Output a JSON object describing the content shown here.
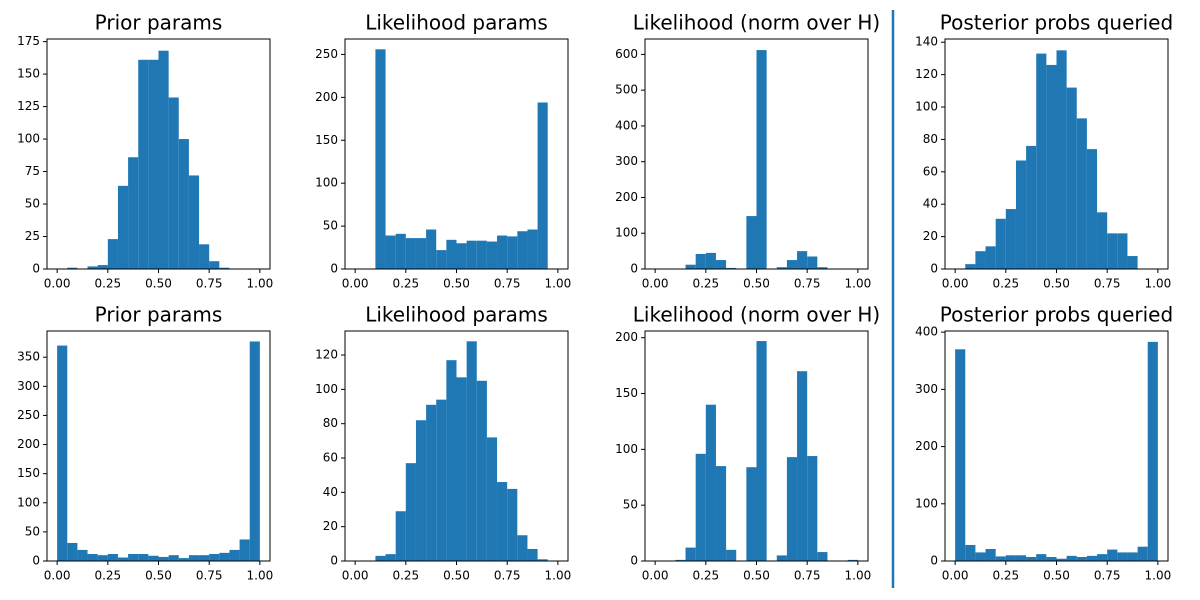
{
  "chart_data": [
    {
      "type": "histogram",
      "title": "Prior params",
      "color": "#1f77b4",
      "bins": [
        0,
        0.05,
        0.1,
        0.15,
        0.2,
        0.25,
        0.3,
        0.35,
        0.4,
        0.45,
        0.5,
        0.55,
        0.6,
        0.65,
        0.7,
        0.75,
        0.8,
        0.85,
        0.9,
        0.95,
        1
      ],
      "counts": [
        0,
        1,
        0,
        2,
        3,
        23,
        64,
        86,
        161,
        161,
        168,
        132,
        100,
        72,
        19,
        6,
        1,
        0,
        0,
        0
      ],
      "xlim": [
        -0.05,
        1.05
      ],
      "xticks": [
        {
          "value": 0,
          "label": "0.00"
        },
        {
          "value": 0.25,
          "label": "0.25"
        },
        {
          "value": 0.5,
          "label": "0.50"
        },
        {
          "value": 0.75,
          "label": "0.75"
        },
        {
          "value": 1,
          "label": "1.00"
        }
      ],
      "ylim": [
        0,
        177
      ],
      "yticks": [
        0,
        25,
        50,
        75,
        100,
        125,
        150,
        175
      ]
    },
    {
      "type": "histogram",
      "title": "Likelihood params",
      "color": "#1f77b4",
      "bins": [
        0,
        0.05,
        0.1,
        0.15,
        0.2,
        0.25,
        0.3,
        0.35,
        0.4,
        0.45,
        0.5,
        0.55,
        0.6,
        0.65,
        0.7,
        0.75,
        0.8,
        0.85,
        0.9,
        0.95,
        1
      ],
      "counts": [
        0,
        0,
        256,
        39,
        41,
        36,
        36,
        46,
        22,
        34,
        30,
        33,
        33,
        32,
        39,
        38,
        44,
        46,
        194,
        0
      ],
      "xlim": [
        -0.05,
        1.05
      ],
      "xticks": [
        {
          "value": 0,
          "label": "0.00"
        },
        {
          "value": 0.25,
          "label": "0.25"
        },
        {
          "value": 0.5,
          "label": "0.50"
        },
        {
          "value": 0.75,
          "label": "0.75"
        },
        {
          "value": 1,
          "label": "1.00"
        }
      ],
      "ylim": [
        0,
        268
      ],
      "yticks": [
        0,
        50,
        100,
        150,
        200,
        250
      ]
    },
    {
      "type": "histogram",
      "title": "Likelihood (norm over H)",
      "color": "#1f77b4",
      "bins": [
        0,
        0.05,
        0.1,
        0.15,
        0.2,
        0.25,
        0.3,
        0.35,
        0.4,
        0.45,
        0.5,
        0.55,
        0.6,
        0.65,
        0.7,
        0.75,
        0.8,
        0.85,
        0.9,
        0.95,
        1
      ],
      "counts": [
        0,
        0,
        0,
        12,
        42,
        45,
        25,
        3,
        0,
        148,
        612,
        0,
        5,
        25,
        50,
        35,
        5,
        0,
        0,
        0
      ],
      "xlim": [
        -0.05,
        1.05
      ],
      "xticks": [
        {
          "value": 0,
          "label": "0.00"
        },
        {
          "value": 0.25,
          "label": "0.25"
        },
        {
          "value": 0.5,
          "label": "0.50"
        },
        {
          "value": 0.75,
          "label": "0.75"
        },
        {
          "value": 1,
          "label": "1.00"
        }
      ],
      "ylim": [
        0,
        643
      ],
      "yticks": [
        0,
        100,
        200,
        300,
        400,
        500,
        600
      ]
    },
    {
      "type": "histogram",
      "title": "Posterior probs queried",
      "color": "#1f77b4",
      "bins": [
        0,
        0.05,
        0.1,
        0.15,
        0.2,
        0.25,
        0.3,
        0.35,
        0.4,
        0.45,
        0.5,
        0.55,
        0.6,
        0.65,
        0.7,
        0.75,
        0.8,
        0.85,
        0.9,
        0.95,
        1
      ],
      "counts": [
        0,
        3,
        11,
        14,
        31,
        37,
        67,
        76,
        133,
        126,
        135,
        112,
        93,
        74,
        35,
        22,
        22,
        8,
        0,
        0
      ],
      "xlim": [
        -0.05,
        1.05
      ],
      "xticks": [
        {
          "value": 0,
          "label": "0.00"
        },
        {
          "value": 0.25,
          "label": "0.25"
        },
        {
          "value": 0.5,
          "label": "0.50"
        },
        {
          "value": 0.75,
          "label": "0.75"
        },
        {
          "value": 1,
          "label": "1.00"
        }
      ],
      "ylim": [
        0,
        142
      ],
      "yticks": [
        0,
        20,
        40,
        60,
        80,
        100,
        120,
        140
      ]
    },
    {
      "type": "histogram",
      "title": "Prior params",
      "color": "#1f77b4",
      "bins": [
        0,
        0.05,
        0.1,
        0.15,
        0.2,
        0.25,
        0.3,
        0.35,
        0.4,
        0.45,
        0.5,
        0.55,
        0.6,
        0.65,
        0.7,
        0.75,
        0.8,
        0.85,
        0.9,
        0.95,
        1
      ],
      "counts": [
        370,
        31,
        19,
        12,
        10,
        12,
        6,
        12,
        12,
        9,
        7,
        10,
        5,
        10,
        10,
        12,
        14,
        19,
        37,
        377
      ],
      "xlim": [
        -0.05,
        1.05
      ],
      "xticks": [
        {
          "value": 0,
          "label": "0.00"
        },
        {
          "value": 0.25,
          "label": "0.25"
        },
        {
          "value": 0.5,
          "label": "0.50"
        },
        {
          "value": 0.75,
          "label": "0.75"
        },
        {
          "value": 1,
          "label": "1.00"
        }
      ],
      "ylim": [
        0,
        395
      ],
      "yticks": [
        0,
        50,
        100,
        150,
        200,
        250,
        300,
        350
      ]
    },
    {
      "type": "histogram",
      "title": "Likelihood params",
      "color": "#1f77b4",
      "bins": [
        0,
        0.05,
        0.1,
        0.15,
        0.2,
        0.25,
        0.3,
        0.35,
        0.4,
        0.45,
        0.5,
        0.55,
        0.6,
        0.65,
        0.7,
        0.75,
        0.8,
        0.85,
        0.9,
        0.95,
        1
      ],
      "counts": [
        0,
        0,
        3,
        4,
        29,
        57,
        82,
        91,
        94,
        117,
        107,
        128,
        105,
        72,
        46,
        42,
        15,
        7,
        1,
        0
      ],
      "xlim": [
        -0.05,
        1.05
      ],
      "xticks": [
        {
          "value": 0,
          "label": "0.00"
        },
        {
          "value": 0.25,
          "label": "0.25"
        },
        {
          "value": 0.5,
          "label": "0.50"
        },
        {
          "value": 0.75,
          "label": "0.75"
        },
        {
          "value": 1,
          "label": "1.00"
        }
      ],
      "ylim": [
        0,
        134
      ],
      "yticks": [
        0,
        20,
        40,
        60,
        80,
        100,
        120
      ]
    },
    {
      "type": "histogram",
      "title": "Likelihood (norm over H)",
      "color": "#1f77b4",
      "bins": [
        0,
        0.05,
        0.1,
        0.15,
        0.2,
        0.25,
        0.3,
        0.35,
        0.4,
        0.45,
        0.5,
        0.55,
        0.6,
        0.65,
        0.7,
        0.75,
        0.8,
        0.85,
        0.9,
        0.95,
        1
      ],
      "counts": [
        0,
        0,
        1,
        12,
        96,
        140,
        85,
        10,
        0,
        84,
        197,
        0,
        5,
        93,
        170,
        94,
        8,
        0,
        0,
        1
      ],
      "xlim": [
        -0.05,
        1.05
      ],
      "xticks": [
        {
          "value": 0,
          "label": "0.00"
        },
        {
          "value": 0.25,
          "label": "0.25"
        },
        {
          "value": 0.5,
          "label": "0.50"
        },
        {
          "value": 0.75,
          "label": "0.75"
        },
        {
          "value": 1,
          "label": "1.00"
        }
      ],
      "ylim": [
        0,
        206
      ],
      "yticks": [
        0,
        50,
        100,
        150,
        200
      ]
    },
    {
      "type": "histogram",
      "title": "Posterior probs queried",
      "color": "#1f77b4",
      "bins": [
        0,
        0.05,
        0.1,
        0.15,
        0.2,
        0.25,
        0.3,
        0.35,
        0.4,
        0.45,
        0.5,
        0.55,
        0.6,
        0.65,
        0.7,
        0.75,
        0.8,
        0.85,
        0.9,
        0.95,
        1
      ],
      "counts": [
        370,
        28,
        15,
        21,
        8,
        10,
        10,
        7,
        12,
        7,
        4,
        9,
        7,
        9,
        12,
        20,
        15,
        15,
        25,
        383
      ],
      "xlim": [
        -0.05,
        1.05
      ],
      "xticks": [
        {
          "value": 0,
          "label": "0.00"
        },
        {
          "value": 0.25,
          "label": "0.25"
        },
        {
          "value": 0.5,
          "label": "0.50"
        },
        {
          "value": 0.75,
          "label": "0.75"
        },
        {
          "value": 1,
          "label": "1.00"
        }
      ],
      "ylim": [
        0,
        402
      ],
      "yticks": [
        0,
        100,
        200,
        300,
        400
      ]
    }
  ]
}
